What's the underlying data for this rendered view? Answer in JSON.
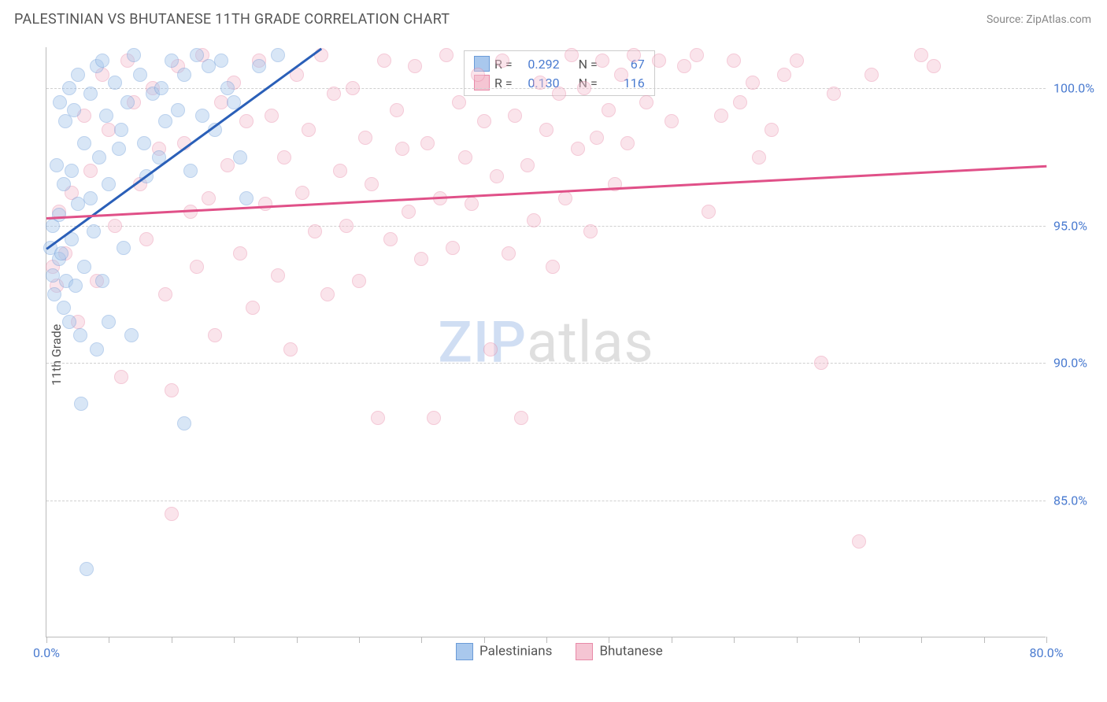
{
  "header": {
    "title": "PALESTINIAN VS BHUTANESE 11TH GRADE CORRELATION CHART",
    "source": "Source: ZipAtlas.com"
  },
  "chart": {
    "type": "scatter",
    "ylabel": "11th Grade",
    "xlim": [
      0,
      80
    ],
    "ylim": [
      80,
      101.5
    ],
    "x_ticks": [
      0,
      5,
      10,
      15,
      20,
      25,
      30,
      35,
      40,
      45,
      50,
      55,
      60,
      65,
      70,
      75,
      80
    ],
    "x_tick_labels": {
      "0": "0.0%",
      "80": "80.0%"
    },
    "y_gridlines": [
      85,
      90,
      95,
      100
    ],
    "y_tick_labels": {
      "85": "85.0%",
      "90": "90.0%",
      "95": "95.0%",
      "100": "100.0%"
    },
    "background_color": "#ffffff",
    "grid_color": "#d0d0d0",
    "axis_color": "#bbbbbb",
    "label_color": "#4a7bd0",
    "marker_radius": 9,
    "marker_opacity": 0.45,
    "series": [
      {
        "name": "Palestinians",
        "fill": "#a9c8ed",
        "stroke": "#6a9bd8",
        "trend_color": "#2a5fb8",
        "R": "0.292",
        "N": "67",
        "trend": {
          "x1": 0,
          "y1": 94.2,
          "x2": 22,
          "y2": 101.5
        },
        "points": [
          [
            0.3,
            94.2
          ],
          [
            0.5,
            95.0
          ],
          [
            0.5,
            93.2
          ],
          [
            0.6,
            92.5
          ],
          [
            0.8,
            97.2
          ],
          [
            1.0,
            95.4
          ],
          [
            1.0,
            93.8
          ],
          [
            1.1,
            99.5
          ],
          [
            1.2,
            94.0
          ],
          [
            1.4,
            96.5
          ],
          [
            1.4,
            92.0
          ],
          [
            1.5,
            98.8
          ],
          [
            1.6,
            93.0
          ],
          [
            1.8,
            100.0
          ],
          [
            1.8,
            91.5
          ],
          [
            2.0,
            97.0
          ],
          [
            2.0,
            94.5
          ],
          [
            2.2,
            99.2
          ],
          [
            2.3,
            92.8
          ],
          [
            2.5,
            100.5
          ],
          [
            2.5,
            95.8
          ],
          [
            2.7,
            91.0
          ],
          [
            2.8,
            88.5
          ],
          [
            3.0,
            98.0
          ],
          [
            3.0,
            93.5
          ],
          [
            3.2,
            82.5
          ],
          [
            3.5,
            99.8
          ],
          [
            3.5,
            96.0
          ],
          [
            3.8,
            94.8
          ],
          [
            4.0,
            100.8
          ],
          [
            4.0,
            90.5
          ],
          [
            4.2,
            97.5
          ],
          [
            4.5,
            101.0
          ],
          [
            4.5,
            93.0
          ],
          [
            4.8,
            99.0
          ],
          [
            5.0,
            96.5
          ],
          [
            5.0,
            91.5
          ],
          [
            5.5,
            100.2
          ],
          [
            5.8,
            97.8
          ],
          [
            6.0,
            98.5
          ],
          [
            6.2,
            94.2
          ],
          [
            6.5,
            99.5
          ],
          [
            6.8,
            91.0
          ],
          [
            7.0,
            101.2
          ],
          [
            7.5,
            100.5
          ],
          [
            7.8,
            98.0
          ],
          [
            8.0,
            96.8
          ],
          [
            8.5,
            99.8
          ],
          [
            9.0,
            97.5
          ],
          [
            9.2,
            100.0
          ],
          [
            9.5,
            98.8
          ],
          [
            10.0,
            101.0
          ],
          [
            10.5,
            99.2
          ],
          [
            11.0,
            100.5
          ],
          [
            11.0,
            87.8
          ],
          [
            11.5,
            97.0
          ],
          [
            12.0,
            101.2
          ],
          [
            12.5,
            99.0
          ],
          [
            13.0,
            100.8
          ],
          [
            13.5,
            98.5
          ],
          [
            14.0,
            101.0
          ],
          [
            14.5,
            100.0
          ],
          [
            15.0,
            99.5
          ],
          [
            15.5,
            97.5
          ],
          [
            16.0,
            96.0
          ],
          [
            17.0,
            100.8
          ],
          [
            18.5,
            101.2
          ]
        ]
      },
      {
        "name": "Bhutanese",
        "fill": "#f5c5d3",
        "stroke": "#e88aa8",
        "trend_color": "#e05088",
        "R": "0.130",
        "N": "116",
        "trend": {
          "x1": 0,
          "y1": 95.3,
          "x2": 80,
          "y2": 97.2
        },
        "points": [
          [
            0.5,
            93.5
          ],
          [
            0.8,
            92.8
          ],
          [
            1.0,
            95.5
          ],
          [
            1.5,
            94.0
          ],
          [
            2.0,
            96.2
          ],
          [
            2.5,
            91.5
          ],
          [
            3.0,
            99.0
          ],
          [
            3.5,
            97.0
          ],
          [
            4.0,
            93.0
          ],
          [
            4.5,
            100.5
          ],
          [
            5.0,
            98.5
          ],
          [
            5.5,
            95.0
          ],
          [
            6.0,
            89.5
          ],
          [
            6.5,
            101.0
          ],
          [
            7.0,
            99.5
          ],
          [
            7.5,
            96.5
          ],
          [
            8.0,
            94.5
          ],
          [
            8.5,
            100.0
          ],
          [
            9.0,
            97.8
          ],
          [
            9.5,
            92.5
          ],
          [
            10.0,
            89.0
          ],
          [
            10.0,
            84.5
          ],
          [
            10.5,
            100.8
          ],
          [
            11.0,
            98.0
          ],
          [
            11.5,
            95.5
          ],
          [
            12.0,
            93.5
          ],
          [
            12.5,
            101.2
          ],
          [
            13.0,
            96.0
          ],
          [
            13.5,
            91.0
          ],
          [
            14.0,
            99.5
          ],
          [
            14.5,
            97.2
          ],
          [
            15.0,
            100.2
          ],
          [
            15.5,
            94.0
          ],
          [
            16.0,
            98.8
          ],
          [
            16.5,
            92.0
          ],
          [
            17.0,
            101.0
          ],
          [
            17.5,
            95.8
          ],
          [
            18.0,
            99.0
          ],
          [
            18.5,
            93.2
          ],
          [
            19.0,
            97.5
          ],
          [
            19.5,
            90.5
          ],
          [
            20.0,
            100.5
          ],
          [
            20.5,
            96.2
          ],
          [
            21.0,
            98.5
          ],
          [
            21.5,
            94.8
          ],
          [
            22.0,
            101.2
          ],
          [
            22.5,
            92.5
          ],
          [
            23.0,
            99.8
          ],
          [
            23.5,
            97.0
          ],
          [
            24.0,
            95.0
          ],
          [
            24.5,
            100.0
          ],
          [
            25.0,
            93.0
          ],
          [
            25.5,
            98.2
          ],
          [
            26.0,
            96.5
          ],
          [
            26.5,
            88.0
          ],
          [
            27.0,
            101.0
          ],
          [
            27.5,
            94.5
          ],
          [
            28.0,
            99.2
          ],
          [
            28.5,
            97.8
          ],
          [
            29.0,
            95.5
          ],
          [
            29.5,
            100.8
          ],
          [
            30.0,
            93.8
          ],
          [
            30.5,
            98.0
          ],
          [
            31.0,
            88.0
          ],
          [
            31.5,
            96.0
          ],
          [
            32.0,
            101.2
          ],
          [
            32.5,
            94.2
          ],
          [
            33.0,
            99.5
          ],
          [
            33.5,
            97.5
          ],
          [
            34.0,
            95.8
          ],
          [
            34.5,
            100.5
          ],
          [
            35.0,
            98.8
          ],
          [
            35.5,
            90.5
          ],
          [
            36.0,
            96.8
          ],
          [
            36.5,
            101.0
          ],
          [
            37.0,
            94.0
          ],
          [
            37.5,
            99.0
          ],
          [
            38.0,
            88.0
          ],
          [
            38.5,
            97.2
          ],
          [
            39.0,
            95.2
          ],
          [
            39.5,
            100.2
          ],
          [
            40.0,
            98.5
          ],
          [
            40.5,
            93.5
          ],
          [
            41.0,
            99.8
          ],
          [
            41.5,
            96.0
          ],
          [
            42.0,
            101.2
          ],
          [
            42.5,
            97.8
          ],
          [
            43.0,
            100.0
          ],
          [
            43.5,
            94.8
          ],
          [
            44.0,
            98.2
          ],
          [
            44.5,
            101.0
          ],
          [
            45.0,
            99.2
          ],
          [
            45.5,
            96.5
          ],
          [
            46.0,
            100.5
          ],
          [
            46.5,
            98.0
          ],
          [
            47.0,
            101.2
          ],
          [
            48.0,
            99.5
          ],
          [
            49.0,
            101.0
          ],
          [
            50.0,
            98.8
          ],
          [
            51.0,
            100.8
          ],
          [
            52.0,
            101.2
          ],
          [
            53.0,
            95.5
          ],
          [
            54.0,
            99.0
          ],
          [
            55.0,
            101.0
          ],
          [
            57.0,
            97.5
          ],
          [
            59.0,
            100.5
          ],
          [
            62.0,
            90.0
          ],
          [
            65.0,
            83.5
          ],
          [
            71.0,
            100.8
          ],
          [
            55.5,
            99.5
          ],
          [
            56.5,
            100.2
          ],
          [
            58.0,
            98.5
          ],
          [
            60.0,
            101.0
          ],
          [
            63.0,
            99.8
          ],
          [
            66.0,
            100.5
          ],
          [
            70.0,
            101.2
          ]
        ]
      }
    ],
    "legend_top_labels": {
      "R": "R =",
      "N": "N ="
    },
    "legend_bottom": [
      "Palestinians",
      "Bhutanese"
    ],
    "watermark": {
      "bold": "ZIP",
      "rest": "atlas"
    }
  }
}
